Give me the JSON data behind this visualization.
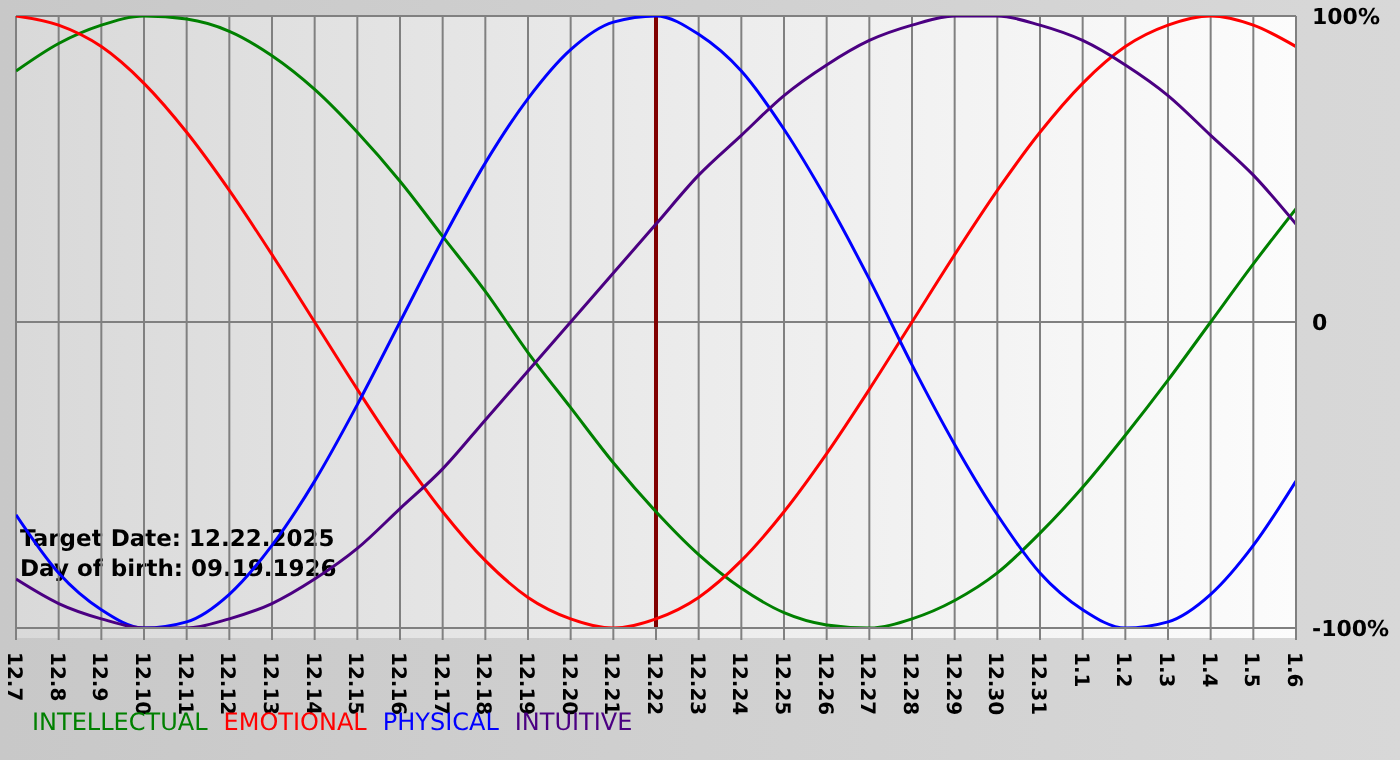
{
  "chart_data": {
    "type": "line",
    "categories": [
      "12.7",
      "12.8",
      "12.9",
      "12.10",
      "12.11",
      "12.12",
      "12.13",
      "12.14",
      "12.15",
      "12.16",
      "12.17",
      "12.18",
      "12.19",
      "12.20",
      "12.21",
      "12.22",
      "12.23",
      "12.24",
      "12.25",
      "12.26",
      "12.27",
      "12.28",
      "12.29",
      "12.30",
      "12.31",
      "1.1",
      "1.2",
      "1.3",
      "1.4",
      "1.5",
      "1.6"
    ],
    "series": [
      {
        "name": "INTELLECTUAL",
        "color": "#008000",
        "values": [
          82,
          91,
          97,
          100,
          99,
          95,
          87,
          76,
          62,
          46,
          28,
          10,
          -10,
          -28,
          -46,
          -62,
          -76,
          -87,
          -95,
          -99,
          -100,
          -97,
          -91,
          -82,
          -69,
          -54,
          -37,
          -19,
          0,
          19,
          37
        ]
      },
      {
        "name": "EMOTIONAL",
        "color": "#ff0000",
        "values": [
          100,
          97,
          90,
          78,
          62,
          43,
          22,
          0,
          -22,
          -43,
          -62,
          -78,
          -90,
          -97,
          -100,
          -97,
          -90,
          -78,
          -62,
          -43,
          -22,
          0,
          22,
          43,
          62,
          78,
          90,
          97,
          100,
          97,
          90
        ]
      },
      {
        "name": "PHYSICAL",
        "color": "#0000ff",
        "values": [
          -63,
          -82,
          -94,
          -100,
          -98,
          -89,
          -73,
          -52,
          -27,
          0,
          27,
          52,
          73,
          89,
          98,
          100,
          94,
          82,
          63,
          40,
          14,
          -14,
          -40,
          -63,
          -82,
          -94,
          -100,
          -98,
          -89,
          -73,
          -52
        ]
      },
      {
        "name": "INTUITIVE",
        "color": "#4b0082",
        "values": [
          -84,
          -92,
          -97,
          -100,
          -100,
          -97,
          -92,
          -84,
          -74,
          -61,
          -48,
          -32,
          -16,
          0,
          16,
          32,
          48,
          61,
          74,
          84,
          92,
          97,
          100,
          100,
          97,
          92,
          84,
          74,
          61,
          48,
          32
        ]
      }
    ],
    "ylim": [
      -100,
      100
    ],
    "yticks": [
      {
        "value": 100,
        "label": "100%"
      },
      0,
      {
        "value": -100,
        "label": "-100%"
      }
    ],
    "grid": true,
    "legend": "bottom",
    "marker": "none",
    "line_style": "solid",
    "ref_lines": [
      {
        "axis": "x",
        "value": "12.22",
        "label": null,
        "color": "#800000"
      }
    ],
    "annotations": [
      "Target Date: 12.22.2025",
      "Day of birth: 09.19.1926"
    ]
  }
}
